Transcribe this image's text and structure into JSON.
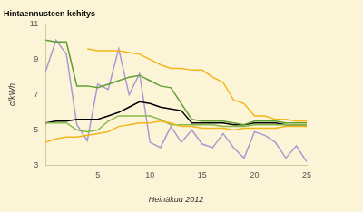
{
  "chart_data": {
    "type": "line",
    "title": "Hintaennusteen kehitys",
    "x_label": "Heinäkuu 2012",
    "y_label": "c/kWh",
    "x": [
      0,
      1,
      2,
      3,
      4,
      5,
      6,
      7,
      8,
      9,
      10,
      11,
      12,
      13,
      14,
      15,
      16,
      17,
      18,
      19,
      20,
      21,
      22,
      23,
      24,
      25
    ],
    "xlim": [
      0,
      25
    ],
    "xticks": [
      5,
      10,
      15,
      20,
      25
    ],
    "ylim": [
      3,
      11
    ],
    "yticks": [
      3,
      5,
      7,
      9,
      11
    ],
    "grid": false,
    "series": [
      {
        "color": "#f2b61c",
        "values": [
          4.3,
          4.5,
          4.6,
          4.6,
          4.7,
          4.8,
          4.9,
          5.2,
          5.3,
          5.4,
          5.4,
          5.5,
          5.4,
          5.2,
          5.2,
          5.1,
          5.1,
          5.1,
          5.0,
          5.1,
          5.1,
          5.1,
          5.1,
          5.2,
          5.2,
          5.2
        ]
      },
      {
        "color": "#f2b61c",
        "values": [
          null,
          null,
          null,
          null,
          9.6,
          9.5,
          9.5,
          9.5,
          9.4,
          9.3,
          9.0,
          8.7,
          8.5,
          8.5,
          8.4,
          8.4,
          8.0,
          7.7,
          6.7,
          6.5,
          5.8,
          5.8,
          5.6,
          5.6,
          5.5,
          5.5
        ]
      },
      {
        "color": "#86b84a",
        "values": [
          5.4,
          5.4,
          5.4,
          5.0,
          4.9,
          5.0,
          5.5,
          5.8,
          5.8,
          5.8,
          5.8,
          5.6,
          5.3,
          5.3,
          5.3,
          5.3,
          5.3,
          5.2,
          5.2,
          5.2,
          5.3,
          5.3,
          5.3,
          5.3,
          5.3,
          5.3
        ]
      },
      {
        "color": "#5f9e35",
        "values": [
          10.1,
          10.0,
          10.0,
          7.5,
          7.5,
          7.4,
          7.6,
          7.8,
          8.0,
          8.1,
          7.8,
          7.5,
          7.4,
          6.5,
          5.6,
          5.5,
          5.5,
          5.5,
          5.4,
          5.3,
          5.5,
          5.5,
          5.5,
          5.4,
          5.4,
          5.4
        ]
      },
      {
        "color": "#000000",
        "values": [
          5.4,
          5.5,
          5.5,
          5.6,
          5.6,
          5.6,
          5.8,
          6.0,
          6.3,
          6.6,
          6.5,
          6.3,
          6.2,
          6.1,
          5.4,
          5.4,
          5.4,
          5.4,
          5.3,
          5.3,
          5.4,
          5.4,
          5.4,
          5.3,
          5.3,
          5.3
        ]
      },
      {
        "color": "#a89bd0",
        "values": [
          8.3,
          10.1,
          9.3,
          5.3,
          4.4,
          7.6,
          7.3,
          9.6,
          7.0,
          8.2,
          4.3,
          4.0,
          5.2,
          4.3,
          5.0,
          4.2,
          4.0,
          4.8,
          4.0,
          3.4,
          4.9,
          4.7,
          4.3,
          3.4,
          4.1,
          3.2
        ]
      }
    ]
  }
}
